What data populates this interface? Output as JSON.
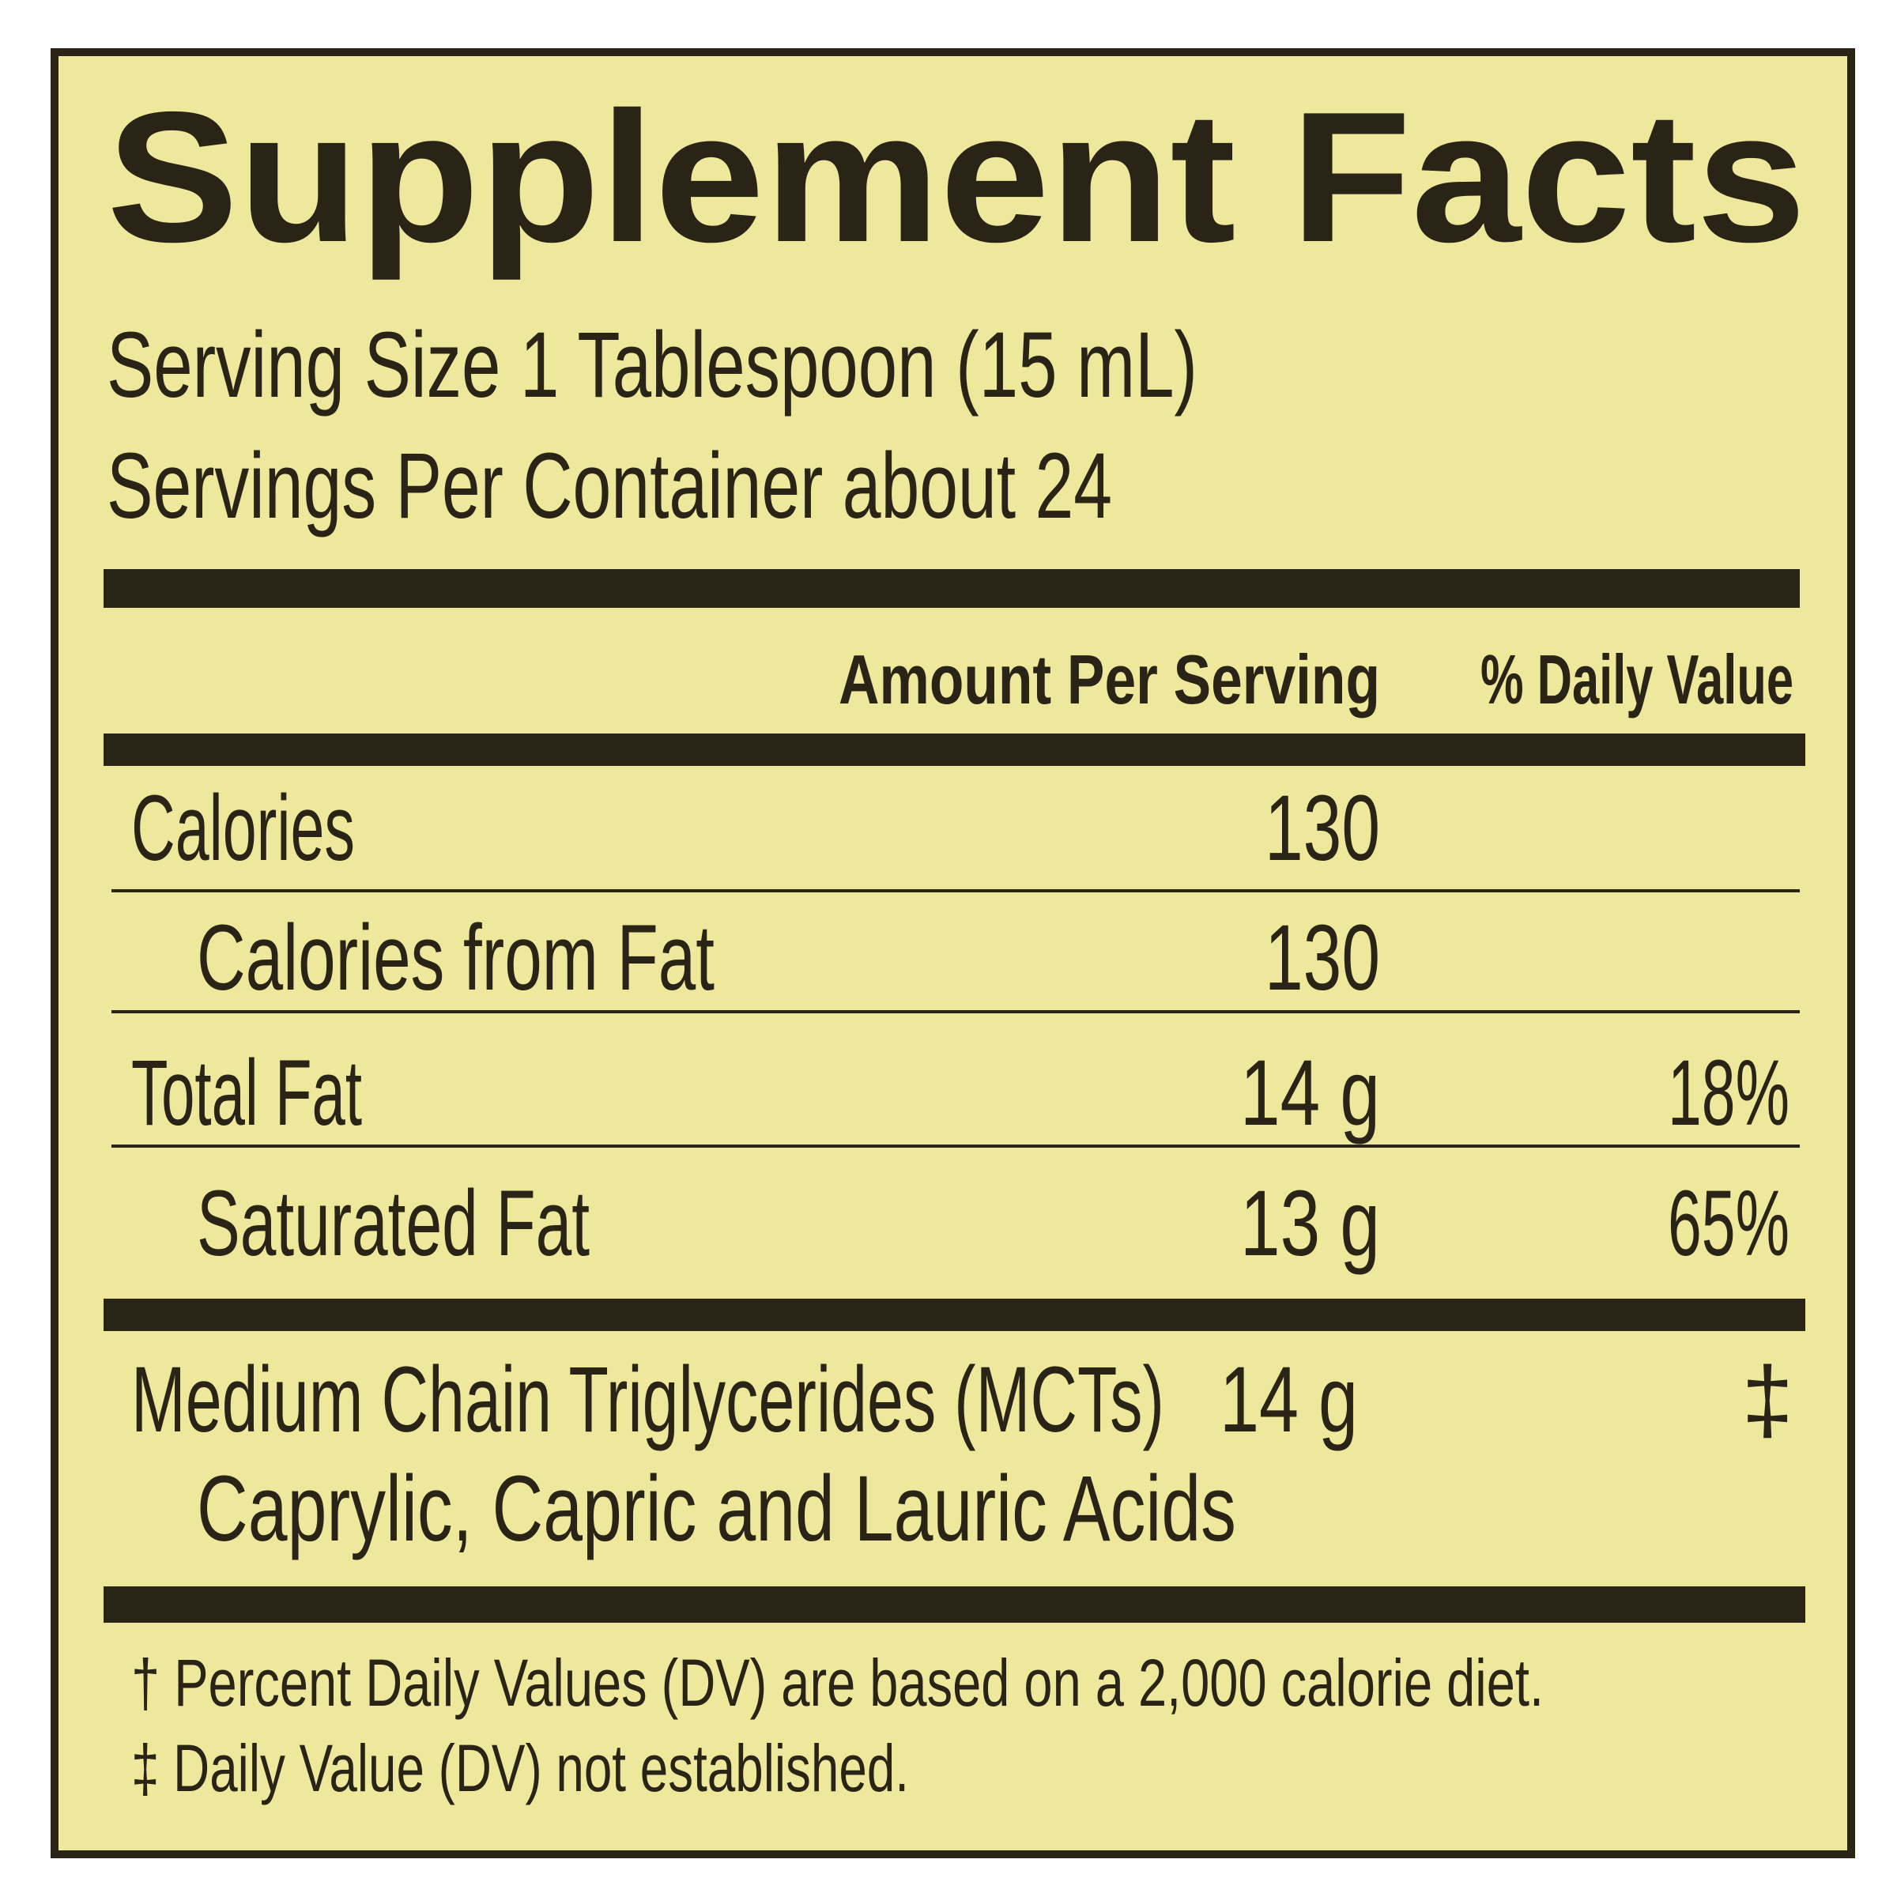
{
  "title": "Supplement Facts",
  "serving_size": "Serving Size 1 Tablespoon (15 mL)",
  "servings_per_container": "Servings Per Container about 24",
  "header": {
    "amount": "Amount Per Serving",
    "daily_value": "% Daily Value"
  },
  "rows": [
    {
      "name": "Calories",
      "amount": "130"
    },
    {
      "name": "Calories from Fat",
      "amount": "130"
    },
    {
      "name": "Total Fat",
      "amount": "14 g",
      "daily_value": "18%"
    },
    {
      "name": "Saturated Fat",
      "amount": "13 g",
      "daily_value": "65%"
    }
  ],
  "mct": {
    "name": "Medium Chain Triglycerides (MCTs)",
    "amount": "14 g",
    "daily_value": "‡",
    "detail": "Caprylic, Capric and Lauric Acids"
  },
  "footnotes": [
    "† Percent Daily Values (DV) are based on a 2,000 calorie diet.",
    "‡ Daily Value (DV) not established."
  ]
}
